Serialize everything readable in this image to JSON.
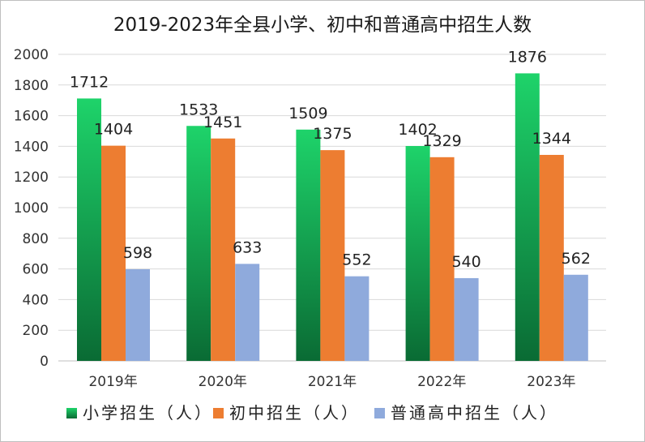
{
  "chart_data": {
    "type": "bar",
    "title": "2019-2023年全县小学、初中和普通高中招生人数",
    "xlabel": "",
    "ylabel": "",
    "ylim": [
      0,
      2000
    ],
    "ytick_step": 200,
    "yticks": [
      "0",
      "200",
      "400",
      "600",
      "800",
      "1000",
      "1200",
      "1400",
      "1600",
      "1800",
      "2000"
    ],
    "grid": true,
    "legend_position": "bottom",
    "categories": [
      "2019年",
      "2020年",
      "2021年",
      "2022年",
      "2023年"
    ],
    "series": [
      {
        "name": "小学招生（人）",
        "values": [
          1712,
          1533,
          1509,
          1402,
          1876
        ],
        "color_top": "#1ED36A",
        "color_bottom": "#0A6B34"
      },
      {
        "name": "初中招生（人）",
        "values": [
          1404,
          1451,
          1375,
          1329,
          1344
        ],
        "color": "#ED7D31"
      },
      {
        "name": "普通高中招生（人）",
        "values": [
          598,
          633,
          552,
          540,
          562
        ],
        "color": "#8FAADC"
      }
    ]
  },
  "colors": {
    "gridline": "#d9d9d9",
    "axis": "#bfbfbf",
    "frame": "#bfbfbf"
  }
}
